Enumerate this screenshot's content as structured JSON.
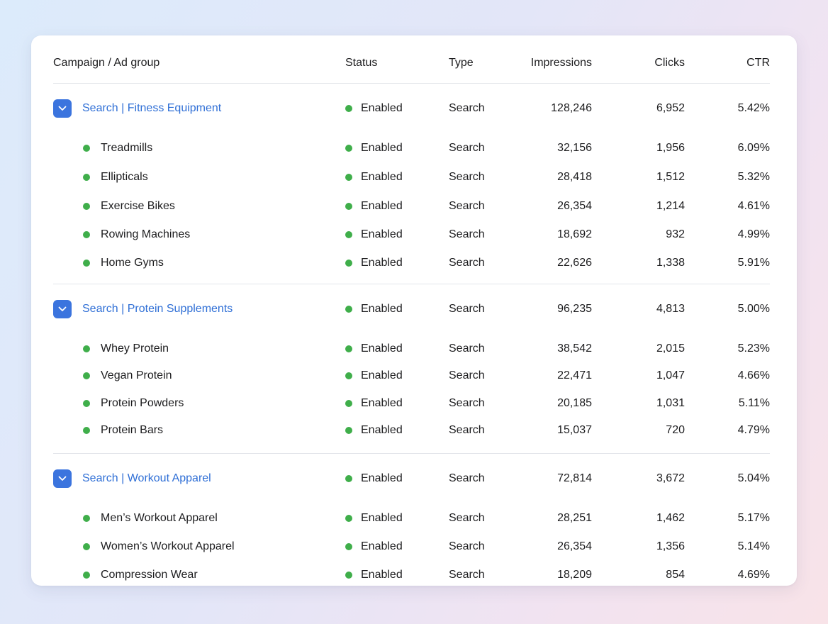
{
  "header": {
    "name": "Campaign / Ad group",
    "status": "Status",
    "type": "Type",
    "impressions": "Impressions",
    "clicks": "Clicks",
    "ctr": "CTR"
  },
  "icons": {
    "toggle": "chevron-down-icon",
    "status": "status-dot-icon"
  },
  "colors": {
    "accent": "#3b74de",
    "campaign_text": "#2f6fd6",
    "enabled": "#3fae4a"
  },
  "campaigns": [
    {
      "name": "Search | Fitness Equipment",
      "status": "Enabled",
      "type": "Search",
      "impressions": "128,246",
      "clicks": "6,952",
      "ctr": "5.42%",
      "ad_groups": [
        {
          "name": "Treadmills",
          "status": "Enabled",
          "type": "Search",
          "impressions": "32,156",
          "clicks": "1,956",
          "ctr": "6.09%"
        },
        {
          "name": "Ellipticals",
          "status": "Enabled",
          "type": "Search",
          "impressions": "28,418",
          "clicks": "1,512",
          "ctr": "5.32%"
        },
        {
          "name": "Exercise Bikes",
          "status": "Enabled",
          "type": "Search",
          "impressions": "26,354",
          "clicks": "1,214",
          "ctr": "4.61%"
        },
        {
          "name": "Rowing Machines",
          "status": "Enabled",
          "type": "Search",
          "impressions": "18,692",
          "clicks": "932",
          "ctr": "4.99%"
        },
        {
          "name": "Home Gyms",
          "status": "Enabled",
          "type": "Search",
          "impressions": "22,626",
          "clicks": "1,338",
          "ctr": "5.91%"
        }
      ]
    },
    {
      "name": "Search | Protein Supplements",
      "status": "Enabled",
      "type": "Search",
      "impressions": "96,235",
      "clicks": "4,813",
      "ctr": "5.00%",
      "ad_groups": [
        {
          "name": "Whey Protein",
          "status": "Enabled",
          "type": "Search",
          "impressions": "38,542",
          "clicks": "2,015",
          "ctr": "5.23%"
        },
        {
          "name": "Vegan Protein",
          "status": "Enabled",
          "type": "Search",
          "impressions": "22,471",
          "clicks": "1,047",
          "ctr": "4.66%"
        },
        {
          "name": "Protein Powders",
          "status": "Enabled",
          "type": "Search",
          "impressions": "20,185",
          "clicks": "1,031",
          "ctr": "5.11%"
        },
        {
          "name": "Protein Bars",
          "status": "Enabled",
          "type": "Search",
          "impressions": "15,037",
          "clicks": "720",
          "ctr": "4.79%"
        }
      ]
    },
    {
      "name": "Search | Workout Apparel",
      "status": "Enabled",
      "type": "Search",
      "impressions": "72,814",
      "clicks": "3,672",
      "ctr": "5.04%",
      "ad_groups": [
        {
          "name": "Men’s Workout Apparel",
          "status": "Enabled",
          "type": "Search",
          "impressions": "28,251",
          "clicks": "1,462",
          "ctr": "5.17%"
        },
        {
          "name": "Women’s Workout Apparel",
          "status": "Enabled",
          "type": "Search",
          "impressions": "26,354",
          "clicks": "1,356",
          "ctr": "5.14%"
        },
        {
          "name": "Compression Wear",
          "status": "Enabled",
          "type": "Search",
          "impressions": "18,209",
          "clicks": "854",
          "ctr": "4.69%"
        }
      ]
    }
  ]
}
